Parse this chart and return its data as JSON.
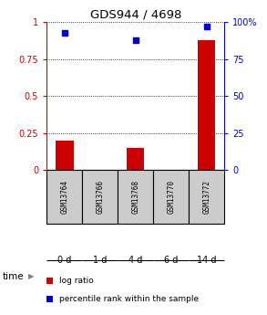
{
  "title": "GDS944 / 4698",
  "samples": [
    "GSM13764",
    "GSM13766",
    "GSM13768",
    "GSM13770",
    "GSM13772"
  ],
  "time_labels": [
    "0 d",
    "1 d",
    "4 d",
    "6 d",
    "14 d"
  ],
  "log_ratio": [
    0.2,
    0.0,
    0.15,
    0.0,
    0.88
  ],
  "percentile_rank": [
    0.93,
    null,
    0.88,
    null,
    0.97
  ],
  "bar_color": "#cc0000",
  "dot_color": "#0000cc",
  "yticks_left": [
    0,
    0.25,
    0.5,
    0.75,
    1.0
  ],
  "ytick_labels_left": [
    "0",
    "0.25",
    "0.5",
    "0.75",
    "1"
  ],
  "yticks_right": [
    0,
    25,
    50,
    75,
    100
  ],
  "ytick_labels_right": [
    "0",
    "25",
    "50",
    "75",
    "100%"
  ],
  "ylim": [
    0,
    1.0
  ],
  "sample_bg_color": "#cccccc",
  "time_bg_colors": [
    "#ccffcc",
    "#ccffcc",
    "#ccffcc",
    "#88ee88",
    "#44cc44"
  ],
  "legend_log_ratio": "log ratio",
  "legend_percentile": "percentile rank within the sample",
  "time_label": "time",
  "figsize": [
    2.93,
    3.45
  ],
  "dpi": 100
}
